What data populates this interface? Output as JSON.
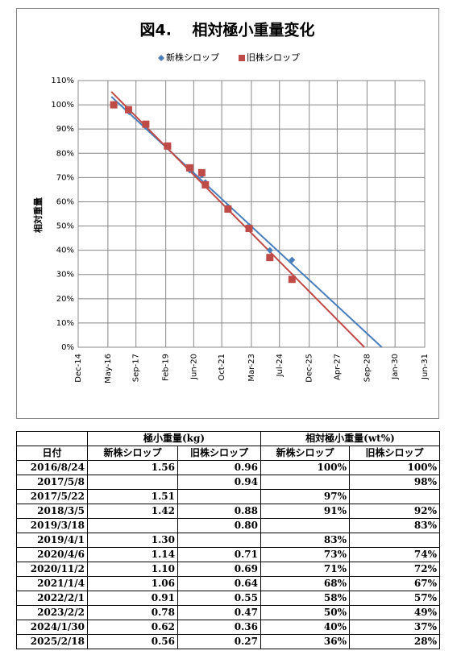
{
  "chart_data": {
    "type": "scatter",
    "title": "図4.　 相対極小重量変化",
    "y_label": "相対重量",
    "x": [
      "2016/8/24",
      "2017/5/8",
      "2017/5/22",
      "2018/3/5",
      "2019/3/18",
      "2019/4/1",
      "2020/4/6",
      "2020/11/2",
      "2021/1/4",
      "2022/2/1",
      "2023/2/2",
      "2024/1/30",
      "2025/2/18"
    ],
    "series": [
      {
        "name": "新株シロップ",
        "color": "#4a7ebb",
        "marker": "diamond",
        "values": [
          100,
          null,
          97,
          91,
          null,
          83,
          73,
          71,
          68,
          58,
          50,
          40,
          36
        ]
      },
      {
        "name": "旧株シロップ",
        "color": "#be4b48",
        "marker": "square",
        "values": [
          100,
          98,
          null,
          92,
          83,
          null,
          74,
          72,
          67,
          57,
          49,
          37,
          28
        ]
      }
    ],
    "trendline": true,
    "xlim": [
      "2014-12-15",
      "2031-06-15"
    ],
    "xticks": [
      {
        "value": "2014-12-15",
        "label": "Dec-14"
      },
      {
        "value": "2016-05-15",
        "label": "May-16"
      },
      {
        "value": "2017-09-15",
        "label": "Sep-17"
      },
      {
        "value": "2019-02-15",
        "label": "Feb-19"
      },
      {
        "value": "2020-06-15",
        "label": "Jun-20"
      },
      {
        "value": "2021-10-15",
        "label": "Oct-21"
      },
      {
        "value": "2023-03-15",
        "label": "Mar-23"
      },
      {
        "value": "2024-07-15",
        "label": "Jul-24"
      },
      {
        "value": "2025-12-15",
        "label": "Dec-25"
      },
      {
        "value": "2027-04-15",
        "label": "Apr-27"
      },
      {
        "value": "2028-09-15",
        "label": "Sep-28"
      },
      {
        "value": "2030-01-15",
        "label": "Jan-30"
      },
      {
        "value": "2031-06-15",
        "label": "Jun-31"
      }
    ],
    "ylim": [
      0,
      110
    ],
    "yticks": [
      {
        "value": 0,
        "label": "0%"
      },
      {
        "value": 10,
        "label": "10%"
      },
      {
        "value": 20,
        "label": "20%"
      },
      {
        "value": 30,
        "label": "30%"
      },
      {
        "value": 40,
        "label": "40%"
      },
      {
        "value": 50,
        "label": "50%"
      },
      {
        "value": 60,
        "label": "60%"
      },
      {
        "value": 70,
        "label": "70%"
      },
      {
        "value": 80,
        "label": "80%"
      },
      {
        "value": 90,
        "label": "90%"
      },
      {
        "value": 100,
        "label": "100%"
      },
      {
        "value": 110,
        "label": "110%"
      }
    ],
    "grid": true,
    "legend": "top"
  },
  "table": {
    "group_headers": [
      "極小重量(kg)",
      "相対極小重量(wt%)"
    ],
    "columns": [
      "日付",
      "新株シロップ",
      "旧株シロップ",
      "新株シロップ",
      "旧株シロップ"
    ],
    "rows": [
      [
        "2016/8/24",
        "1.56",
        "0.96",
        "100%",
        "100%"
      ],
      [
        "2017/5/8",
        null,
        "0.94",
        null,
        "98%"
      ],
      [
        "2017/5/22",
        "1.51",
        null,
        "97%",
        null
      ],
      [
        "2018/3/5",
        "1.42",
        "0.88",
        "91%",
        "92%"
      ],
      [
        "2019/3/18",
        null,
        "0.80",
        null,
        "83%"
      ],
      [
        "2019/4/1",
        "1.30",
        null,
        "83%",
        null
      ],
      [
        "2020/4/6",
        "1.14",
        "0.71",
        "73%",
        "74%"
      ],
      [
        "2020/11/2",
        "1.10",
        "0.69",
        "71%",
        "72%"
      ],
      [
        "2021/1/4",
        "1.06",
        "0.64",
        "68%",
        "67%"
      ],
      [
        "2022/2/1",
        "0.91",
        "0.55",
        "58%",
        "57%"
      ],
      [
        "2023/2/2",
        "0.78",
        "0.47",
        "50%",
        "49%"
      ],
      [
        "2024/1/30",
        "0.62",
        "0.36",
        "40%",
        "37%"
      ],
      [
        "2025/2/18",
        "0.56",
        "0.27",
        "36%",
        "28%"
      ]
    ]
  }
}
